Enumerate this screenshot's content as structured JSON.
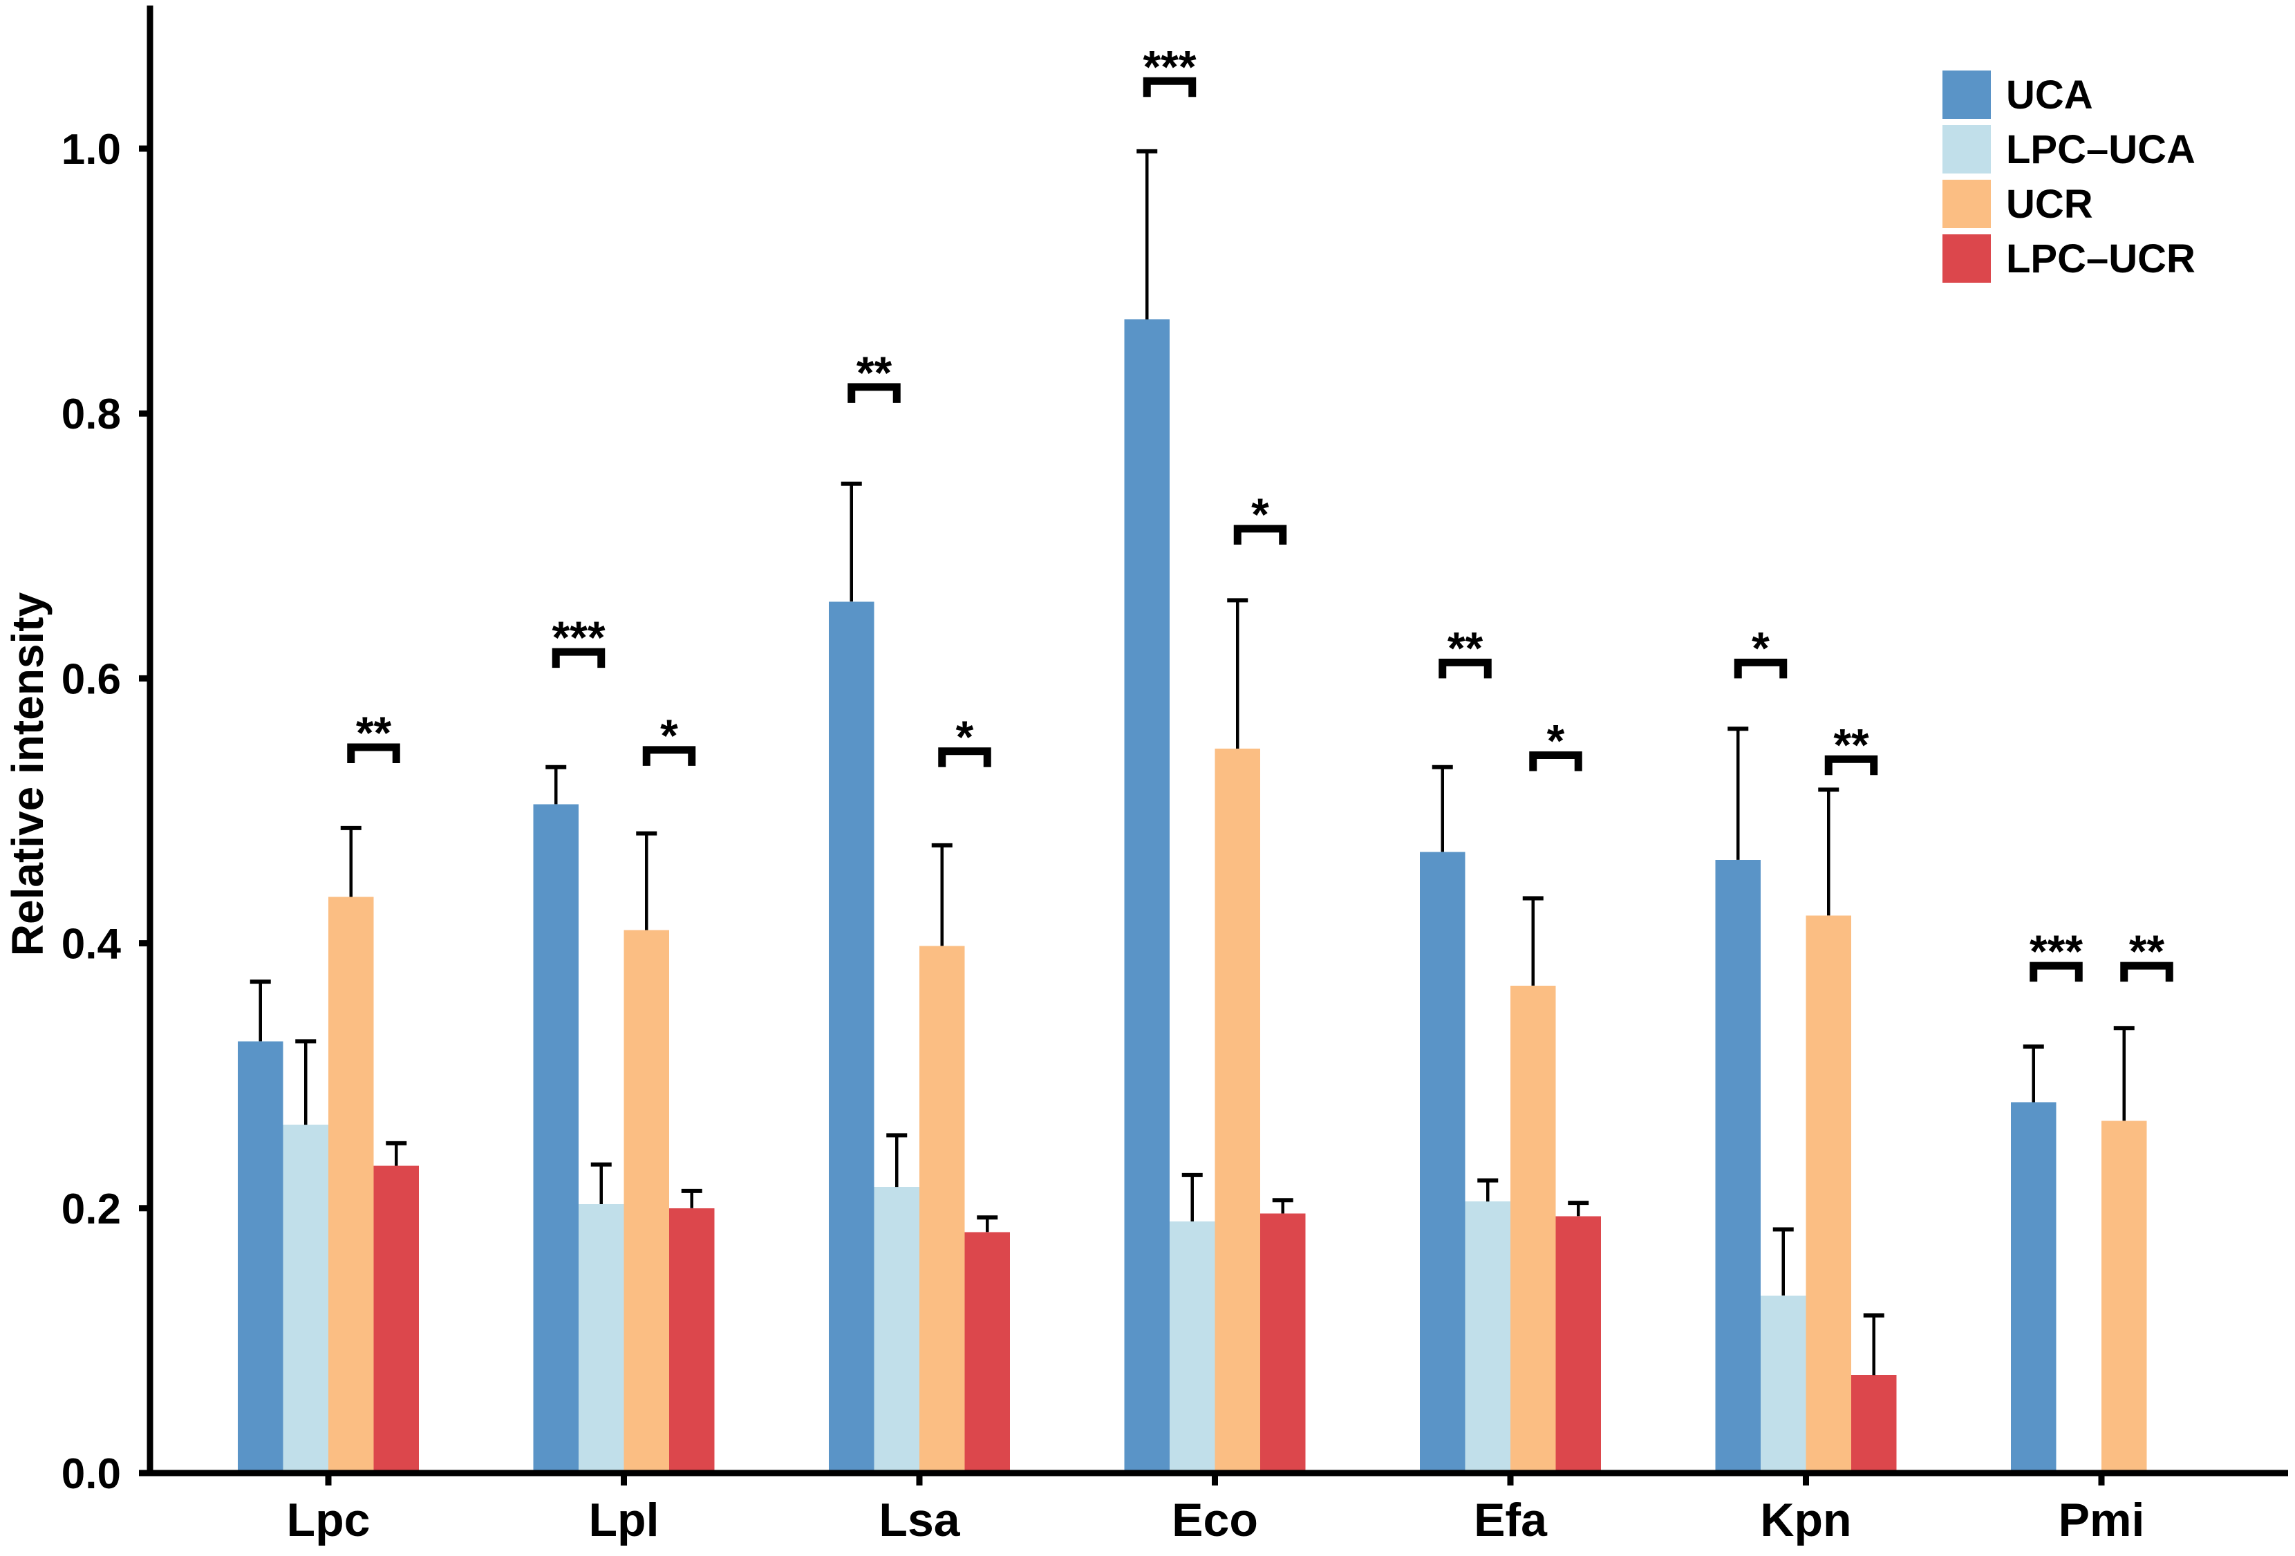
{
  "chart_data": {
    "type": "bar",
    "title": "",
    "xlabel": "",
    "ylabel": "Relative intensity",
    "ylim": [
      0,
      1.1
    ],
    "yticks": [
      0.0,
      0.2,
      0.4,
      0.6,
      0.8,
      1.0
    ],
    "ytick_labels": [
      "0.0",
      "0.2",
      "0.4",
      "0.6",
      "0.8",
      "1.0"
    ],
    "grid": false,
    "legend_position": "top-right",
    "categories": [
      "Lpc",
      "Lpl",
      "Lsa",
      "Eco",
      "Efa",
      "Kpn",
      "Pmi"
    ],
    "series": [
      {
        "name": "UCA",
        "color": "#5A94C7",
        "values": [
          0.326,
          0.505,
          0.658,
          0.871,
          0.469,
          0.463,
          0.28
        ],
        "errors": [
          0.045,
          0.028,
          0.089,
          0.127,
          0.064,
          0.099,
          0.042
        ]
      },
      {
        "name": "LPC–UCA",
        "color": "#C1DFEA",
        "values": [
          0.263,
          0.203,
          0.216,
          0.19,
          0.205,
          0.134,
          null
        ],
        "errors": [
          0.063,
          0.03,
          0.039,
          0.035,
          0.016,
          0.05,
          null
        ]
      },
      {
        "name": "UCR",
        "color": "#FBBE83",
        "values": [
          0.435,
          0.41,
          0.398,
          0.547,
          0.368,
          0.421,
          0.266
        ],
        "errors": [
          0.052,
          0.073,
          0.076,
          0.112,
          0.066,
          0.095,
          0.07
        ]
      },
      {
        "name": "LPC–UCR",
        "color": "#DC474C",
        "values": [
          0.232,
          0.2,
          0.182,
          0.196,
          0.194,
          0.074,
          null
        ],
        "errors": [
          0.017,
          0.013,
          0.011,
          0.01,
          0.01,
          0.045,
          null
        ]
      }
    ],
    "significance": [
      {
        "category": "Lpc",
        "pair": [
          "UCR",
          "LPC–UCR"
        ],
        "label": "**",
        "y": 0.548
      },
      {
        "category": "Lpl",
        "pair": [
          "UCA",
          "LPC–UCA"
        ],
        "label": "***",
        "y": 0.62
      },
      {
        "category": "Lpl",
        "pair": [
          "UCR",
          "LPC–UCR"
        ],
        "label": "*",
        "y": 0.546
      },
      {
        "category": "Lsa",
        "pair": [
          "UCA",
          "LPC–UCA"
        ],
        "label": "**",
        "y": 0.82
      },
      {
        "category": "Lsa",
        "pair": [
          "UCR",
          "LPC–UCR"
        ],
        "label": "*",
        "y": 0.545
      },
      {
        "category": "Eco",
        "pair": [
          "UCA",
          "LPC–UCA"
        ],
        "label": "***",
        "y": 1.051
      },
      {
        "category": "Eco",
        "pair": [
          "UCR",
          "LPC–UCR"
        ],
        "label": "*",
        "y": 0.713
      },
      {
        "category": "Efa",
        "pair": [
          "UCA",
          "LPC–UCA"
        ],
        "label": "**",
        "y": 0.612
      },
      {
        "category": "Efa",
        "pair": [
          "UCR",
          "LPC–UCR"
        ],
        "label": "*",
        "y": 0.542
      },
      {
        "category": "Kpn",
        "pair": [
          "UCA",
          "LPC–UCA"
        ],
        "label": "*",
        "y": 0.612
      },
      {
        "category": "Kpn",
        "pair": [
          "UCR",
          "LPC–UCR"
        ],
        "label": "**",
        "y": 0.539
      },
      {
        "category": "Pmi",
        "pair": [
          "UCA",
          "LPC–UCA"
        ],
        "label": "***",
        "y": 0.383
      },
      {
        "category": "Pmi",
        "pair": [
          "UCR",
          "LPC–UCR"
        ],
        "label": "**",
        "y": 0.383
      }
    ]
  }
}
